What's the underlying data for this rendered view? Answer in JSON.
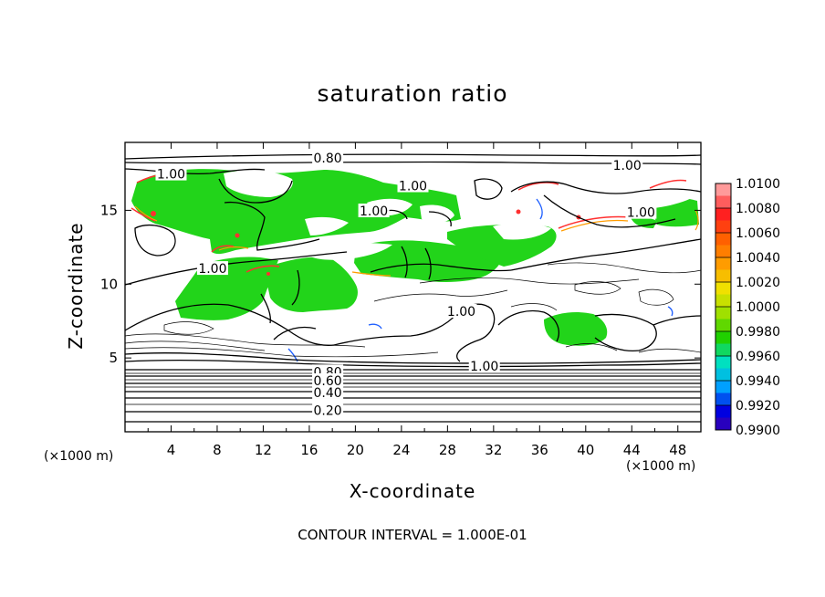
{
  "chart_data": {
    "type": "heatmap",
    "title": "saturation ratio",
    "xlabel": "X-coordinate",
    "ylabel": "Z-coordinate",
    "x_unit": "(×1000 m)",
    "z_unit": "(×1000 m)",
    "footer": "CONTOUR INTERVAL = 1.000E-01",
    "xlim": [
      0,
      50
    ],
    "ylim": [
      0,
      19.6
    ],
    "x_ticks": [
      "4",
      "8",
      "12",
      "16",
      "20",
      "24",
      "28",
      "32",
      "36",
      "40",
      "44",
      "48"
    ],
    "x_tick_values": [
      4,
      8,
      12,
      16,
      20,
      24,
      28,
      32,
      36,
      40,
      44,
      48
    ],
    "y_ticks": [
      "5",
      "10",
      "15"
    ],
    "y_tick_values": [
      5,
      10,
      15
    ],
    "colorbar": {
      "min": 0.99,
      "max": 1.01,
      "labels": [
        "1.0100",
        "1.0080",
        "1.0060",
        "1.0040",
        "1.0020",
        "1.0000",
        "0.9980",
        "0.9960",
        "0.9940",
        "0.9920",
        "0.9900"
      ],
      "colors": [
        "#ff9a9a",
        "#ff2020",
        "#ff6000",
        "#ff9c00",
        "#f0e000",
        "#a0e000",
        "#20d000",
        "#00e0c0",
        "#00a0ff",
        "#0000e0",
        "#50009c"
      ]
    },
    "contour_labels": [
      {
        "text": "0.80",
        "x": 17.6,
        "z": 18.5
      },
      {
        "text": "1.00",
        "x": 4.0,
        "z": 17.4
      },
      {
        "text": "1.00",
        "x": 43.6,
        "z": 18.0
      },
      {
        "text": "1.00",
        "x": 25.0,
        "z": 16.6
      },
      {
        "text": "1.00",
        "x": 21.6,
        "z": 14.9
      },
      {
        "text": "1.00",
        "x": 44.8,
        "z": 14.8
      },
      {
        "text": "1.00",
        "x": 7.6,
        "z": 11.0
      },
      {
        "text": "1.00",
        "x": 29.2,
        "z": 8.1
      },
      {
        "text": "1.00",
        "x": 31.2,
        "z": 4.4
      },
      {
        "text": "0.80",
        "x": 17.6,
        "z": 4.0
      },
      {
        "text": "0.60",
        "x": 17.6,
        "z": 3.4
      },
      {
        "text": "0.40",
        "x": 17.6,
        "z": 2.6
      },
      {
        "text": "0.20",
        "x": 17.6,
        "z": 1.4
      }
    ]
  }
}
